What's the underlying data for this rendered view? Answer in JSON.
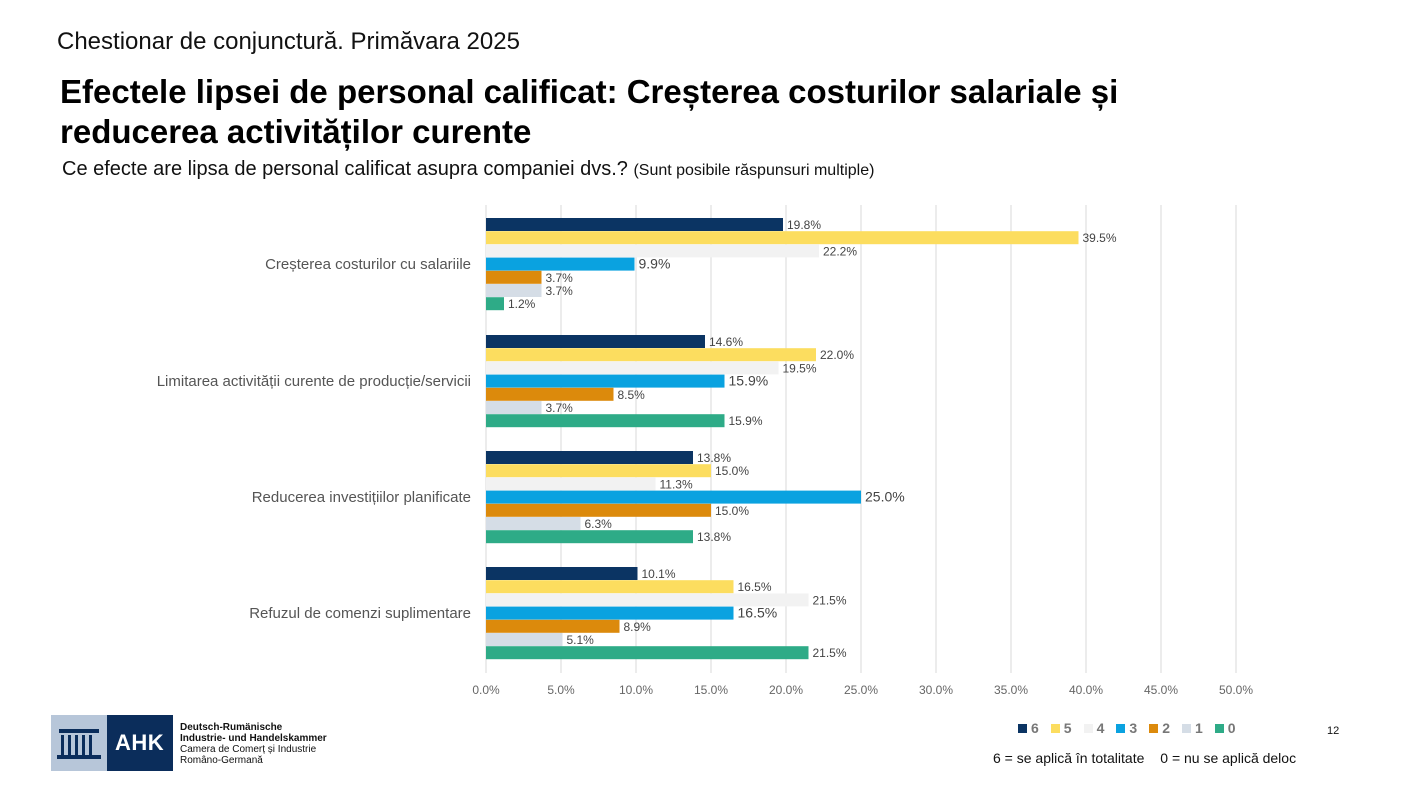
{
  "header": {
    "kicker": "Chestionar de conjunctură. Primăvara 2025",
    "title": "Efectele lipsei de personal calificat: Creșterea costurilor salariale și reducerea activităților curente",
    "question": "Ce efecte are lipsa de personal calificat asupra companiei dvs.?",
    "question_hint": "(Sunt posibile răspunsuri multiple)"
  },
  "chart_data": {
    "type": "bar",
    "orientation": "horizontal",
    "title": "",
    "xlabel": "",
    "ylabel": "",
    "xlim": [
      0,
      50
    ],
    "x_ticks": [
      "0.0%",
      "5.0%",
      "10.0%",
      "15.0%",
      "20.0%",
      "25.0%",
      "30.0%",
      "35.0%",
      "40.0%",
      "45.0%",
      "50.0%"
    ],
    "grid": true,
    "legend_position": "bottom-right",
    "categories": [
      "Creșterea costurilor cu salariile",
      "Limitarea activității curente de producție/servicii",
      "Reducerea investițiilor planificate",
      "Refuzul de comenzi suplimentare"
    ],
    "series": [
      {
        "name": "6",
        "color": "#0b3463",
        "values": [
          19.8,
          14.6,
          13.8,
          10.1
        ],
        "labels": [
          "19.8%",
          "14.6%",
          "13.8%",
          "10.1%"
        ]
      },
      {
        "name": "5",
        "color": "#fcdd5f",
        "values": [
          39.5,
          22.0,
          15.0,
          16.5
        ],
        "labels": [
          "39.5%",
          "22.0%",
          "15.0%",
          "16.5%"
        ]
      },
      {
        "name": "4",
        "color": "#f2f2f2",
        "values": [
          22.2,
          19.5,
          11.3,
          21.5
        ],
        "labels": [
          "22.2%",
          "19.5%",
          "11.3%",
          "21.5%"
        ]
      },
      {
        "name": "3",
        "color": "#0aa2e0",
        "values": [
          9.9,
          15.9,
          25.0,
          16.5
        ],
        "labels": [
          "9.9%",
          "15.9%",
          "25.0%",
          "16.5%"
        ]
      },
      {
        "name": "2",
        "color": "#dc8a0c",
        "values": [
          3.7,
          8.5,
          15.0,
          8.9
        ],
        "labels": [
          "3.7%",
          "8.5%",
          "15.0%",
          "8.9%"
        ]
      },
      {
        "name": "1",
        "color": "#d5dde6",
        "values": [
          3.7,
          3.7,
          6.3,
          5.1
        ],
        "labels": [
          "3.7%",
          "3.7%",
          "6.3%",
          "5.1%"
        ]
      },
      {
        "name": "0",
        "color": "#2eab87",
        "values": [
          1.2,
          15.9,
          13.8,
          21.5
        ],
        "labels": [
          "1.2%",
          "15.9%",
          "13.8%",
          "21.5%"
        ]
      }
    ]
  },
  "legend_note": {
    "high": "6 = se aplică în totalitate",
    "low": "0 = nu se aplică deloc"
  },
  "footer": {
    "logo_text": "AHK",
    "org_line1": "Deutsch-Rumänische",
    "org_line2": "Industrie- und Handelskammer",
    "org_line3": "Camera de Comerț și Industrie",
    "org_line4": "Româno-Germană",
    "page_number": "12"
  }
}
